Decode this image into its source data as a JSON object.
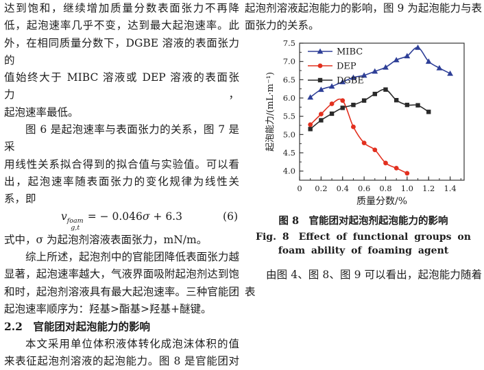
{
  "left_column": {
    "para1": [
      "达到饱和，继续增加质量分数表面张力不再降",
      "低，起泡速率几乎不变，达到最大起泡速率。此",
      "外，在相同质量分数下，DGBE 溶液的表面张力的",
      "值始终大于 MIBC 溶液或 DEP 溶液的表面张力，",
      "起泡速率最低。"
    ],
    "para2": [
      "图 6 是起泡速率与表面张力的关系，图 7 是采",
      "用线性关系拟合得到的拟合值与实验值。可以看",
      "出，起泡速率随表面张力的变化规律为线性关",
      "系，即"
    ],
    "equation": {
      "var": "v",
      "sup": "foam",
      "sub": "g,t",
      "eq_pre": "= − 0.046",
      "sigma": "σ",
      "eq_post": " + 6.3",
      "number": "(6)"
    },
    "para3": [
      "式中，σ 为起泡剂溶液表面张力，mN/m。"
    ],
    "para4": [
      "综上所述，起泡剂中的官能团降低表面张力越",
      "显著，起泡速率越大，气液界面吸附起泡剂达到饱",
      "和时，起泡剂溶液具有最大起泡速率。三种官能团",
      "起泡速率顺序为：羟基>酯基>羟基+醚键。"
    ],
    "section_heading": "2.2　官能团对起泡能力的影响",
    "para5": [
      "本文采用单位体积液体转化成泡沫体积的值",
      "来表征起泡剂溶液的起泡能力。图 8 是官能团对"
    ]
  },
  "right_column": {
    "para1": [
      "起泡剂溶液起泡能力的影响，图 9 为起泡能力与表",
      "面张力的关系。"
    ],
    "figure_caption_cn": "图 8　官能团对起泡剂起泡能力的影响",
    "figure_caption_en1": "Fig. 8　Effect of functional groups on",
    "figure_caption_en2": "foam ability of foaming agent",
    "para2": [
      "由图 4、图 8、图 9 可以看出，起泡能力随着表"
    ]
  },
  "chart_data": {
    "type": "line",
    "title": "",
    "xlabel": "质量分数/%",
    "ylabel": "起泡能力/(mL·m⁻¹)",
    "xlim": [
      0,
      1.53
    ],
    "ylim": [
      3.75,
      7.5
    ],
    "xticks": [
      0,
      0.2,
      0.4,
      0.6,
      0.8,
      1.0,
      1.2,
      1.4
    ],
    "yticks": [
      4.0,
      4.5,
      5.0,
      5.5,
      6.0,
      6.5,
      7.0,
      7.5
    ],
    "x_minor_step": 0.1,
    "y_minor_step": 0.25,
    "grid": false,
    "legend_position": "inside-top-left",
    "frame": true,
    "series": [
      {
        "name": "MIBC",
        "color": "#2e3f97",
        "marker": "triangle",
        "x": [
          0.1,
          0.2,
          0.3,
          0.4,
          0.5,
          0.6,
          0.7,
          0.8,
          0.9,
          1.0,
          1.1,
          1.2,
          1.3,
          1.4
        ],
        "values": [
          6.02,
          6.23,
          6.32,
          6.44,
          6.56,
          6.62,
          6.73,
          6.84,
          7.04,
          7.15,
          7.38,
          7.0,
          6.82,
          6.67
        ]
      },
      {
        "name": "DEP",
        "color": "#e2301f",
        "marker": "circle",
        "x": [
          0.1,
          0.2,
          0.3,
          0.4,
          0.5,
          0.6,
          0.7,
          0.8,
          0.9,
          1.0
        ],
        "values": [
          5.27,
          5.56,
          5.84,
          5.93,
          5.21,
          4.77,
          4.58,
          4.22,
          4.08,
          3.94
        ]
      },
      {
        "name": "DGBE",
        "color": "#2a2a2a",
        "marker": "square",
        "x": [
          0.1,
          0.2,
          0.3,
          0.4,
          0.5,
          0.6,
          0.7,
          0.8,
          0.9,
          1.0,
          1.1,
          1.2
        ],
        "values": [
          5.15,
          5.39,
          5.57,
          5.73,
          5.81,
          5.93,
          6.11,
          6.23,
          5.94,
          5.81,
          5.8,
          5.62
        ]
      }
    ]
  }
}
